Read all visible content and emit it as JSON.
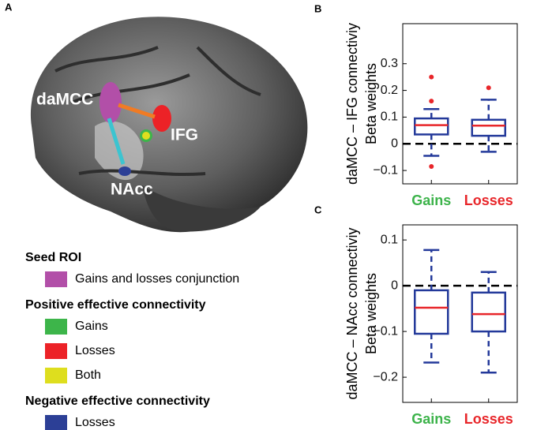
{
  "panel_a": {
    "label": "A",
    "brain_labels": [
      "daMCC",
      "IFG",
      "NAcc"
    ],
    "legend": [
      {
        "heading": "Seed ROI",
        "items": [
          {
            "label": "Gains and losses conjunction",
            "color": "#b24fa8"
          }
        ]
      },
      {
        "heading": "Positive effective connectivity",
        "items": [
          {
            "label": "Gains",
            "color": "#3db54a"
          },
          {
            "label": "Losses",
            "color": "#ec2227"
          },
          {
            "label": "Both",
            "color": "#dede1e"
          }
        ]
      },
      {
        "heading": "Negative effective connectivity",
        "items": [
          {
            "label": "Losses",
            "color": "#2c3f96"
          }
        ]
      }
    ]
  },
  "chart_data": [
    {
      "type": "box",
      "panel_label": "B",
      "ylabel": [
        "daMCC – IFG connectiviy",
        "Beta weights"
      ],
      "categories": [
        "Gains",
        "Losses"
      ],
      "category_colors": [
        "#3cb34a",
        "#e8262a"
      ],
      "box_color": "#23399a",
      "median_color": "#e8262a",
      "outlier_color": "#e8262a",
      "hline": 0,
      "ylim": [
        -0.15,
        0.45
      ],
      "yticks": [
        {
          "value": -0.1,
          "label": "−0.1"
        },
        0,
        0.1,
        0.2,
        0.3
      ],
      "boxes": [
        {
          "whisker_low": -0.045,
          "q1": 0.035,
          "median": 0.07,
          "q3": 0.095,
          "whisker_high": 0.13,
          "outliers": [
            0.25,
            0.16,
            -0.085
          ]
        },
        {
          "whisker_low": -0.03,
          "q1": 0.03,
          "median": 0.068,
          "q3": 0.09,
          "whisker_high": 0.165,
          "outliers": [
            0.21
          ]
        }
      ]
    },
    {
      "type": "box",
      "panel_label": "C",
      "ylabel": [
        "daMCC – NAcc connectiviy",
        "Beta weights"
      ],
      "categories": [
        "Gains",
        "Losses"
      ],
      "category_colors": [
        "#3cb34a",
        "#e8262a"
      ],
      "box_color": "#23399a",
      "median_color": "#e8262a",
      "outlier_color": "#e8262a",
      "hline": 0,
      "ylim": [
        -0.255,
        0.133
      ],
      "yticks": [
        {
          "value": -0.2,
          "label": "−0.2"
        },
        {
          "value": -0.1,
          "label": "−0.1"
        },
        0,
        0.1
      ],
      "boxes": [
        {
          "whisker_low": -0.168,
          "q1": -0.105,
          "median": -0.048,
          "q3": -0.01,
          "whisker_high": 0.078,
          "outliers": []
        },
        {
          "whisker_low": -0.19,
          "q1": -0.1,
          "median": -0.062,
          "q3": -0.015,
          "whisker_high": 0.03,
          "outliers": []
        }
      ]
    }
  ]
}
